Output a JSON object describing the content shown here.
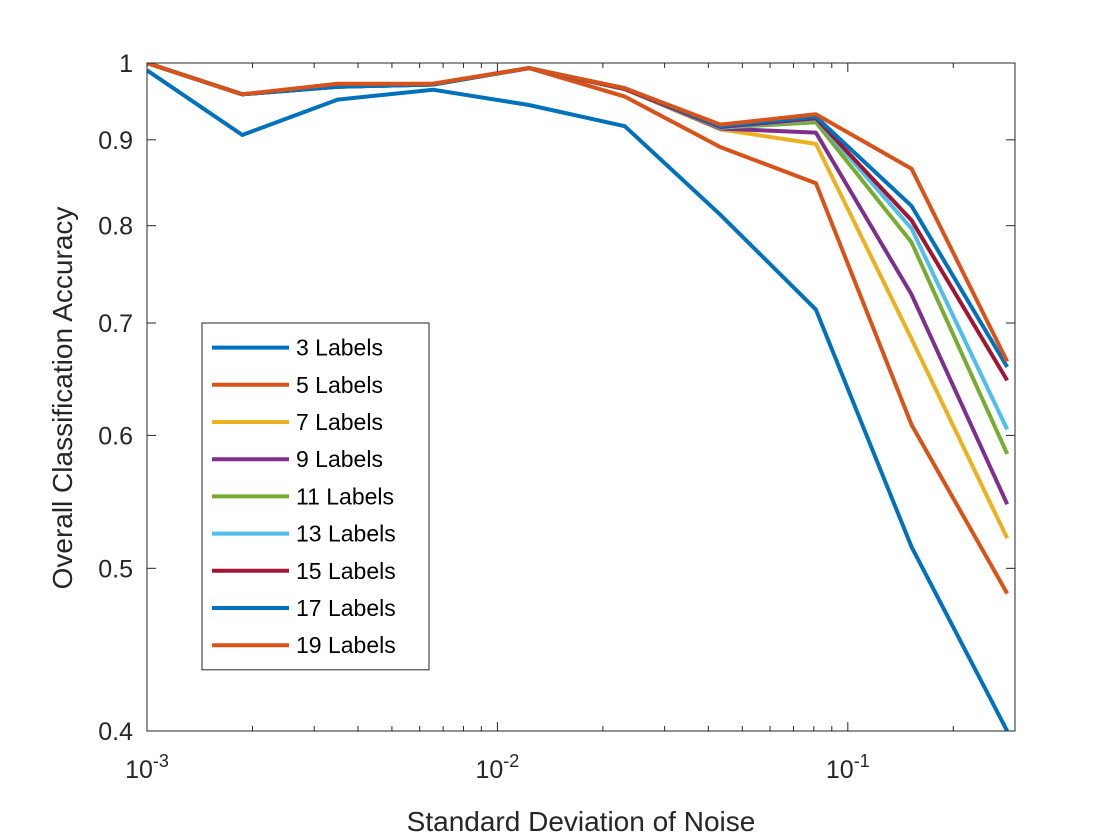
{
  "chart_data": {
    "type": "line",
    "title": "",
    "xlabel": "Standard Deviation of Noise",
    "ylabel": "Overall Classification Accuracy",
    "xscale": "log",
    "yscale": "log",
    "xlim": [
      0.001,
      0.3
    ],
    "ylim": [
      0.4,
      1.0
    ],
    "x": [
      0.001,
      0.00187,
      0.0035,
      0.00655,
      0.0123,
      0.0231,
      0.0433,
      0.0811,
      0.152,
      0.285
    ],
    "x_ticks": [
      {
        "value": 0.001,
        "base": "10",
        "exp": "-3"
      },
      {
        "value": 0.01,
        "base": "10",
        "exp": "-2"
      },
      {
        "value": 0.1,
        "base": "10",
        "exp": "-1"
      }
    ],
    "y_ticks": [
      {
        "value": 0.4,
        "label": "0.4"
      },
      {
        "value": 0.5,
        "label": "0.5"
      },
      {
        "value": 0.6,
        "label": "0.6"
      },
      {
        "value": 0.7,
        "label": "0.7"
      },
      {
        "value": 0.8,
        "label": "0.8"
      },
      {
        "value": 0.9,
        "label": "0.9"
      },
      {
        "value": 1.0,
        "label": "1"
      }
    ],
    "legend_position": "center-left",
    "series": [
      {
        "name": "3 Labels",
        "color": "#0072BD",
        "values": [
          0.99,
          0.906,
          0.951,
          0.964,
          0.944,
          0.917,
          0.812,
          0.713,
          0.515,
          0.4
        ]
      },
      {
        "name": "5 Labels",
        "color": "#D95319",
        "values": [
          1.0,
          0.958,
          0.97,
          0.972,
          0.993,
          0.955,
          0.891,
          0.848,
          0.609,
          0.483
        ]
      },
      {
        "name": "7 Labels",
        "color": "#EDB120",
        "values": [
          1.0,
          0.958,
          0.968,
          0.971,
          0.993,
          0.965,
          0.913,
          0.895,
          0.685,
          0.521
        ]
      },
      {
        "name": "9 Labels",
        "color": "#7E2F8E",
        "values": [
          1.0,
          0.958,
          0.968,
          0.971,
          0.993,
          0.965,
          0.914,
          0.909,
          0.728,
          0.546
        ]
      },
      {
        "name": "11 Labels",
        "color": "#77AC30",
        "values": [
          1.0,
          0.958,
          0.968,
          0.971,
          0.993,
          0.965,
          0.915,
          0.922,
          0.782,
          0.585
        ]
      },
      {
        "name": "13 Labels",
        "color": "#4DBEEE",
        "values": [
          1.0,
          0.958,
          0.968,
          0.971,
          0.993,
          0.965,
          0.915,
          0.926,
          0.797,
          0.605
        ]
      },
      {
        "name": "15 Labels",
        "color": "#A2142F",
        "values": [
          1.0,
          0.958,
          0.968,
          0.971,
          0.993,
          0.965,
          0.916,
          0.927,
          0.806,
          0.647
        ]
      },
      {
        "name": "17 Labels",
        "color": "#0072BD",
        "values": [
          1.0,
          0.958,
          0.968,
          0.971,
          0.993,
          0.966,
          0.917,
          0.929,
          0.822,
          0.659
        ]
      },
      {
        "name": "19 Labels",
        "color": "#D95319",
        "values": [
          1.0,
          0.958,
          0.972,
          0.972,
          0.993,
          0.966,
          0.919,
          0.932,
          0.865,
          0.664
        ]
      }
    ]
  }
}
